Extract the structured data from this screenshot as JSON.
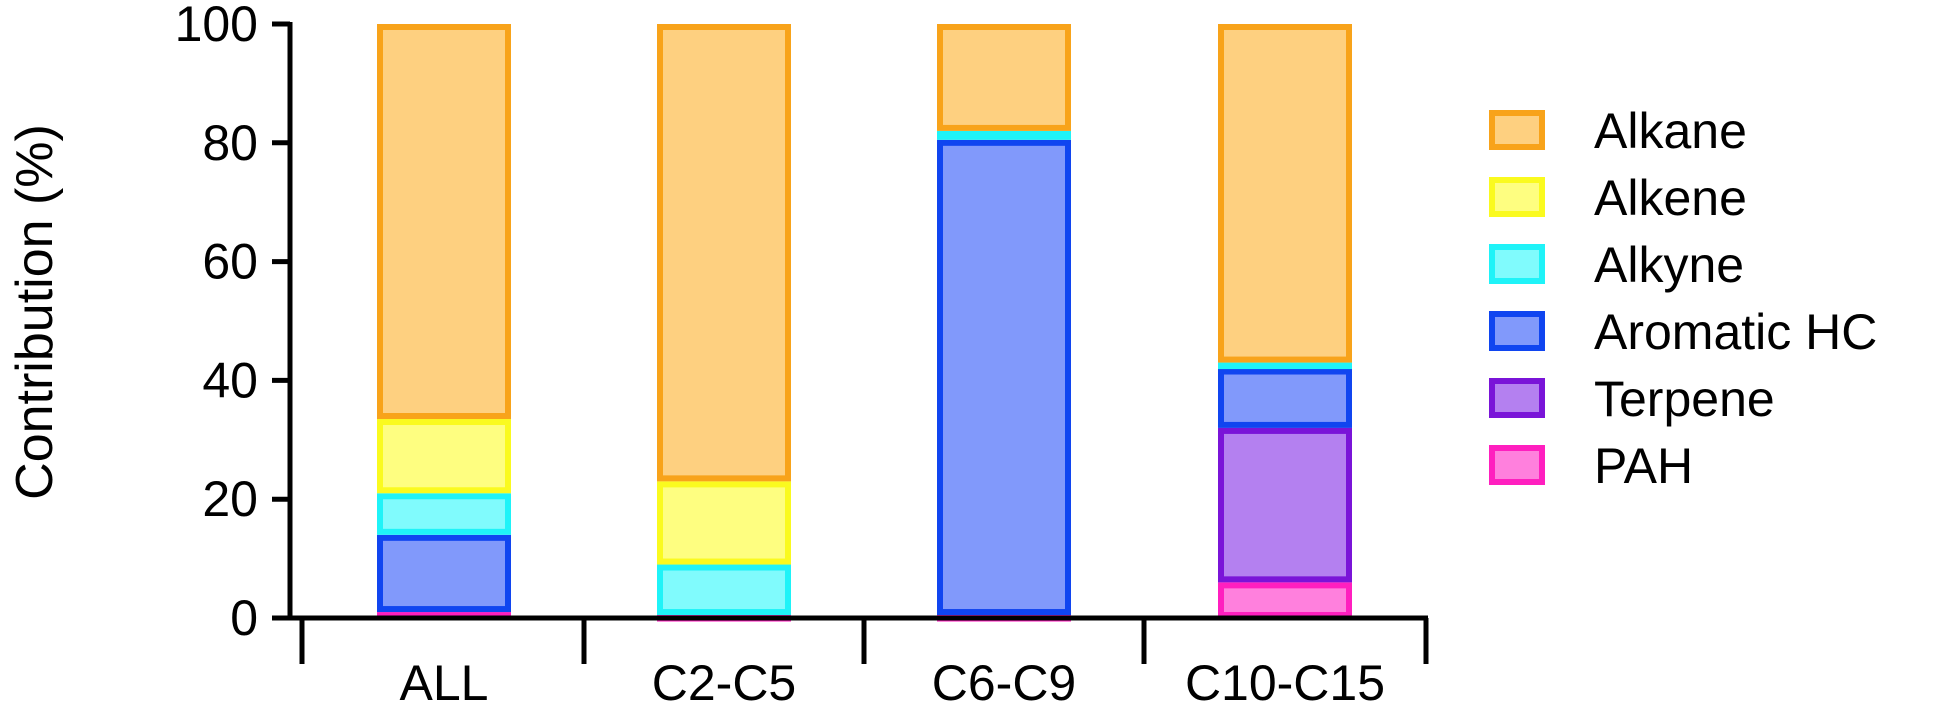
{
  "chart_data": {
    "type": "bar",
    "stacked": true,
    "title": "",
    "xlabel": "",
    "ylabel": "Contribution (%)",
    "ylim": [
      0,
      100
    ],
    "yticks": [
      "0",
      "20",
      "40",
      "60",
      "80",
      "100"
    ],
    "categories": [
      "ALL",
      "C2-C5",
      "C6-C9",
      "C10-C15"
    ],
    "legend_position": "right",
    "series": [
      {
        "name": "PAH",
        "values": [
          1,
          0.5,
          0.5,
          6
        ],
        "fill": "#ff80dd",
        "stroke": "#ff1fbf"
      },
      {
        "name": "Terpene",
        "values": [
          0,
          0,
          0,
          26
        ],
        "fill": "#b480f0",
        "stroke": "#7a14d8"
      },
      {
        "name": "Aromatic HC",
        "values": [
          13,
          0,
          80,
          10
        ],
        "fill": "#8199fb",
        "stroke": "#1045f0"
      },
      {
        "name": "Alkyne",
        "values": [
          7,
          8.5,
          1.5,
          1
        ],
        "fill": "#80fbfd",
        "stroke": "#1ff3f8"
      },
      {
        "name": "Alkene",
        "values": [
          12.5,
          14,
          0,
          0
        ],
        "fill": "#fefe80",
        "stroke": "#fafa1f"
      },
      {
        "name": "Alkane",
        "values": [
          66.5,
          77,
          18,
          57
        ],
        "fill": "#fed080",
        "stroke": "#f8a31a"
      }
    ],
    "legend_order": [
      "Alkane",
      "Alkene",
      "Alkyne",
      "Aromatic HC",
      "Terpene",
      "PAH"
    ]
  }
}
